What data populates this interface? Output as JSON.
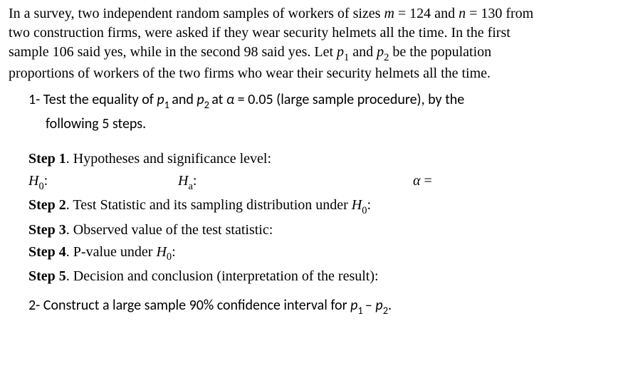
{
  "intro": {
    "l1a": "In a survey, two independent random samples of workers of sizes ",
    "m_var": "m",
    "eq1": " = 124 and ",
    "n_var": "n",
    "eq2": " = 130 from",
    "l2": "two construction firms, were asked if they wear security helmets all the time. In the first",
    "l3a": "sample 106 said yes, while in the second 98 said yes. Let ",
    "p1v": "p",
    "s1": "1",
    "and": " and ",
    "p2v": "p",
    "s2": "2",
    "l3b": " be the population",
    "l4": "proportions of workers of the two firms who wear their security helmets all the time."
  },
  "q1": {
    "num": "1-  ",
    "a": "Test the equality of ",
    "p1": "p",
    "s1": "1 ",
    "and": "and ",
    "p2": "p",
    "s2": "2 ",
    "at": "at ",
    "alpha": "α",
    "aval": " = 0.05 (large sample procedure), by the",
    "b": "following 5 steps."
  },
  "steps": {
    "s1label": "Step 1",
    "s1text": ". Hypotheses and significance level:",
    "h0l": "H",
    "h0s": "0",
    "col": ":",
    "hal": "H",
    "has": "a",
    "alpha": "α",
    "eq": " =",
    "s2label": "Step 2",
    "s2text": ". Test Statistic and its sampling distribution under ",
    "s3label": "Step 3",
    "s3text": ". Observed value of the test statistic:",
    "s4label": "Step 4",
    "s4text": ". P-value under ",
    "s5label": "Step 5",
    "s5text": ". Decision and conclusion (interpretation of the result):"
  },
  "q2": {
    "num": "2-  ",
    "a": "Construct a large sample 90% confidence interval for ",
    "p1": "p",
    "s1": "1 ",
    "minus": "– ",
    "p2": "p",
    "s2": "2",
    "dot": "."
  }
}
